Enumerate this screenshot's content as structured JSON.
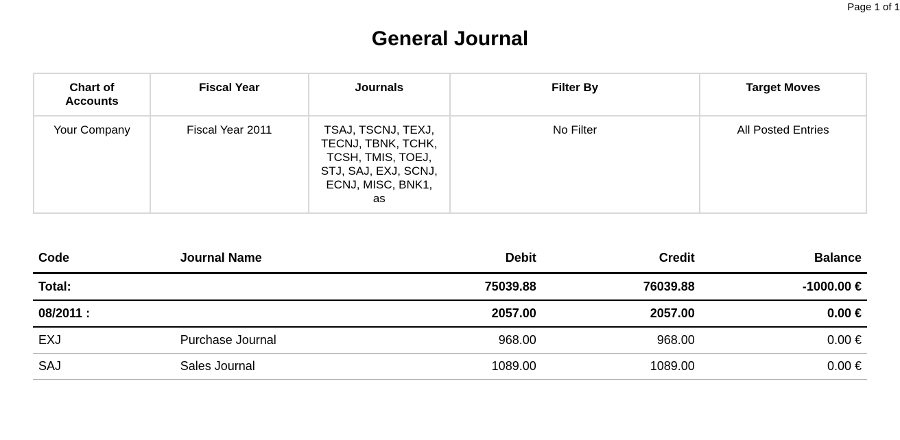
{
  "page_indicator": "Page 1 of 1",
  "title": "General Journal",
  "filters": {
    "headers": {
      "chart": "Chart of Accounts",
      "fiscal_year": "Fiscal Year",
      "journals": "Journals",
      "filter_by": "Filter By",
      "target_moves": "Target Moves"
    },
    "values": {
      "chart": "Your Company",
      "fiscal_year": "Fiscal Year 2011",
      "journals": "TSAJ, TSCNJ, TEXJ, TECNJ, TBNK, TCHK, TCSH, TMIS, TOEJ, STJ, SAJ, EXJ, SCNJ, ECNJ, MISC, BNK1, as",
      "filter_by": "No Filter",
      "target_moves": "All Posted Entries"
    }
  },
  "journal": {
    "headers": {
      "code": "Code",
      "name": "Journal Name",
      "debit": "Debit",
      "credit": "Credit",
      "balance": "Balance"
    },
    "total": {
      "label": "Total:",
      "debit": "75039.88",
      "credit": "76039.88",
      "balance": "-1000.00 €"
    },
    "period": {
      "label": "08/2011 :",
      "debit": "2057.00",
      "credit": "2057.00",
      "balance": "0.00 €"
    },
    "rows": [
      {
        "code": "EXJ",
        "name": "Purchase Journal",
        "debit": "968.00",
        "credit": "968.00",
        "balance": "0.00 €"
      },
      {
        "code": "SAJ",
        "name": "Sales Journal",
        "debit": "1089.00",
        "credit": "1089.00",
        "balance": "0.00 €"
      }
    ]
  }
}
